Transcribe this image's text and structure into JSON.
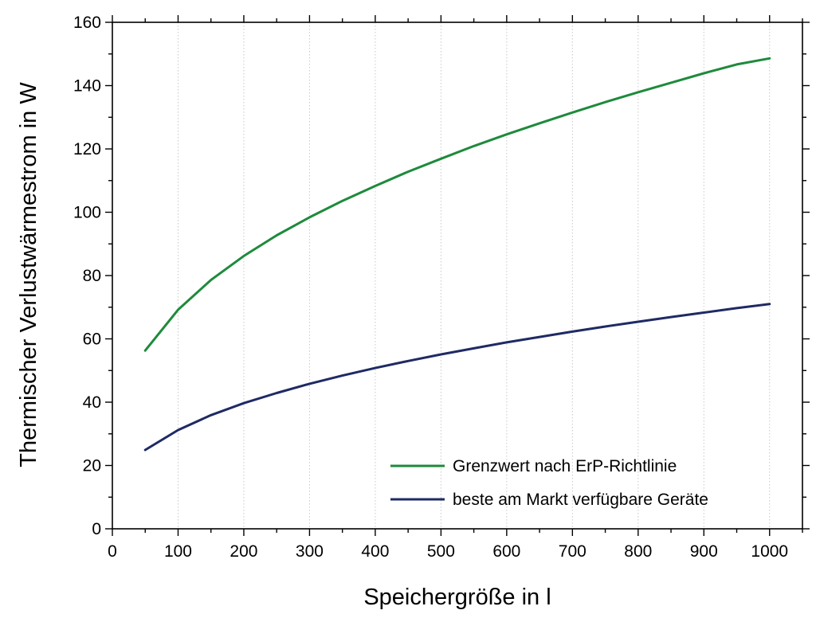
{
  "chart_data": {
    "type": "line",
    "title": "",
    "xlabel": "Speichergröße in l",
    "ylabel": "Thermischer Verlustwärmestrom in W",
    "xlim": [
      0,
      1050
    ],
    "ylim": [
      0,
      160
    ],
    "x_ticks": [
      0,
      100,
      200,
      300,
      400,
      500,
      600,
      700,
      800,
      900,
      1000
    ],
    "y_ticks": [
      0,
      20,
      40,
      60,
      80,
      100,
      120,
      140,
      160
    ],
    "grid": "vertical dotted",
    "legend_position": "bottom-right",
    "series": [
      {
        "name": "Grenzwert nach ErP-Richtlinie",
        "color": "#1e8a3c",
        "x": [
          50,
          100,
          150,
          200,
          250,
          300,
          350,
          400,
          450,
          500,
          550,
          600,
          650,
          700,
          750,
          800,
          850,
          900,
          950,
          1000
        ],
        "y": [
          56.3,
          69.2,
          78.6,
          86.2,
          92.7,
          98.4,
          103.6,
          108.3,
          112.8,
          116.9,
          120.9,
          124.6,
          128.1,
          131.5,
          134.8,
          137.9,
          140.9,
          143.9,
          146.7,
          148.6
        ]
      },
      {
        "name": "beste am Markt verfügbare Geräte",
        "color": "#1f2a64",
        "x": [
          50,
          100,
          150,
          200,
          250,
          300,
          350,
          400,
          450,
          500,
          550,
          600,
          650,
          700,
          750,
          800,
          850,
          900,
          950,
          1000
        ],
        "y": [
          24.9,
          31.2,
          35.9,
          39.7,
          42.9,
          45.8,
          48.4,
          50.8,
          53.0,
          55.1,
          57.0,
          58.9,
          60.6,
          62.3,
          63.9,
          65.4,
          66.9,
          68.3,
          69.7,
          71.0
        ]
      }
    ]
  }
}
